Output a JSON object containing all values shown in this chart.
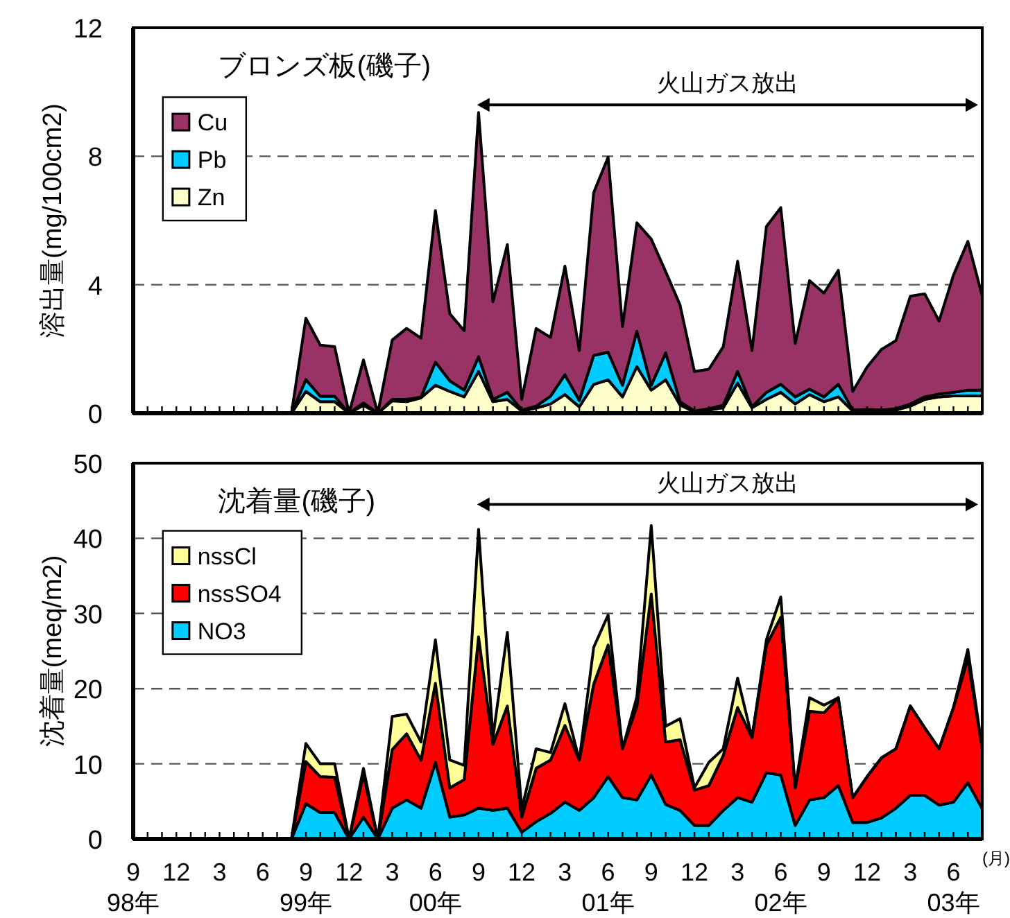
{
  "chart_data": [
    {
      "type": "area",
      "stacked": true,
      "title": "ブロンズ板(磯子)",
      "ylabel": "溶出量(mg/100cm2)",
      "legend": "top left",
      "grid": "y",
      "tick_labels": "y",
      "x": [
        "1999-08",
        "1999-09",
        "1999-10",
        "1999-11",
        "1999-12",
        "2000-01",
        "2000-02",
        "2000-03",
        "2000-04",
        "2000-05",
        "2000-06",
        "2000-07",
        "2000-08",
        "2000-09",
        "2000-10",
        "2000-11",
        "2000-12",
        "2001-01",
        "2001-02",
        "2001-03",
        "2001-04",
        "2001-05",
        "2001-06",
        "2001-07",
        "2001-08",
        "2001-09",
        "2001-10",
        "2001-11",
        "2001-12",
        "2002-01",
        "2002-02",
        "2002-03",
        "2002-04",
        "2002-05",
        "2002-06",
        "2002-07",
        "2002-08",
        "2002-09",
        "2002-10",
        "2002-11",
        "2002-12",
        "2003-01",
        "2003-02",
        "2003-03",
        "2003-04",
        "2003-05",
        "2003-06",
        "2003-07",
        "2003-08"
      ],
      "xlim": [
        "1998-09",
        "2003-08"
      ],
      "ylim": [
        0,
        12
      ],
      "yticks": [
        0,
        4,
        8,
        12
      ],
      "xticks": [
        {
          "value": "1998-09",
          "label": null
        },
        {
          "value": "1998-10",
          "label": null
        },
        {
          "value": "1998-11",
          "label": null
        },
        {
          "value": "1998-12",
          "label": null
        },
        {
          "value": "1999-01",
          "label": null
        },
        {
          "value": "1999-02",
          "label": null
        },
        {
          "value": "1999-03",
          "label": null
        },
        {
          "value": "1999-04",
          "label": null
        },
        {
          "value": "1999-05",
          "label": null
        },
        {
          "value": "1999-06",
          "label": null
        },
        {
          "value": "1999-07",
          "label": null
        },
        {
          "value": "1999-08",
          "label": null
        },
        {
          "value": "1999-09",
          "label": null
        },
        {
          "value": "1999-10",
          "label": null
        },
        {
          "value": "1999-11",
          "label": null
        },
        {
          "value": "1999-12",
          "label": null
        },
        {
          "value": "2000-01",
          "label": null
        },
        {
          "value": "2000-02",
          "label": null
        },
        {
          "value": "2000-03",
          "label": null
        },
        {
          "value": "2000-04",
          "label": null
        },
        {
          "value": "2000-05",
          "label": null
        },
        {
          "value": "2000-06",
          "label": null
        },
        {
          "value": "2000-07",
          "label": null
        },
        {
          "value": "2000-08",
          "label": null
        },
        {
          "value": "2000-09",
          "label": null
        },
        {
          "value": "2000-10",
          "label": null
        },
        {
          "value": "2000-11",
          "label": null
        },
        {
          "value": "2000-12",
          "label": null
        },
        {
          "value": "2001-01",
          "label": null
        },
        {
          "value": "2001-02",
          "label": null
        },
        {
          "value": "2001-03",
          "label": null
        },
        {
          "value": "2001-04",
          "label": null
        },
        {
          "value": "2001-05",
          "label": null
        },
        {
          "value": "2001-06",
          "label": null
        },
        {
          "value": "2001-07",
          "label": null
        },
        {
          "value": "2001-08",
          "label": null
        },
        {
          "value": "2001-09",
          "label": null
        },
        {
          "value": "2001-10",
          "label": null
        },
        {
          "value": "2001-11",
          "label": null
        },
        {
          "value": "2001-12",
          "label": null
        },
        {
          "value": "2002-01",
          "label": null
        },
        {
          "value": "2002-02",
          "label": null
        },
        {
          "value": "2002-03",
          "label": null
        },
        {
          "value": "2002-04",
          "label": null
        },
        {
          "value": "2002-05",
          "label": null
        },
        {
          "value": "2002-06",
          "label": null
        },
        {
          "value": "2002-07",
          "label": null
        },
        {
          "value": "2002-08",
          "label": null
        },
        {
          "value": "2002-09",
          "label": null
        },
        {
          "value": "2002-10",
          "label": null
        },
        {
          "value": "2002-11",
          "label": null
        },
        {
          "value": "2002-12",
          "label": null
        },
        {
          "value": "2003-01",
          "label": null
        },
        {
          "value": "2003-02",
          "label": null
        },
        {
          "value": "2003-03",
          "label": null
        },
        {
          "value": "2003-04",
          "label": null
        },
        {
          "value": "2003-05",
          "label": null
        },
        {
          "value": "2003-06",
          "label": null
        },
        {
          "value": "2003-07",
          "label": null
        },
        {
          "value": "2003-08",
          "label": null
        }
      ],
      "annotations": [
        "火山ガス放出"
      ],
      "series": [
        {
          "name": "Zn",
          "color": "#ffffcc",
          "values": [
            0,
            0.68,
            0.36,
            0.36,
            0,
            0.25,
            0,
            0.39,
            0.36,
            0.48,
            0.87,
            0.68,
            0.51,
            1.3,
            0.36,
            0.43,
            0.07,
            0.16,
            0.29,
            0.58,
            0.2,
            0.9,
            1.04,
            0.51,
            1.45,
            0.72,
            1.04,
            0.26,
            0.04,
            0.1,
            0.17,
            0.94,
            0.17,
            0.43,
            0.65,
            0.29,
            0.58,
            0.36,
            0.51,
            0.07,
            0.07,
            0.07,
            0.1,
            0.22,
            0.43,
            0.51,
            0.54,
            0.54,
            0.54
          ]
        },
        {
          "name": "Pb",
          "color": "#00ccff",
          "values": [
            0,
            0.37,
            0.17,
            0.17,
            0,
            0.07,
            0,
            0.04,
            0.07,
            0.02,
            0.72,
            0.33,
            0.21,
            0.46,
            0.07,
            0.22,
            0.03,
            0.06,
            0.24,
            0.62,
            0.2,
            0.9,
            0.86,
            0.36,
            1.1,
            0.15,
            0.84,
            0.1,
            0.03,
            0.04,
            0.08,
            0.36,
            0.03,
            0.22,
            0.25,
            0.22,
            0.17,
            0.15,
            0.39,
            0.03,
            0.05,
            0.03,
            0.04,
            0.07,
            0.08,
            0.09,
            0.11,
            0.18,
            0.18
          ]
        },
        {
          "name": "Cu",
          "color": "#993366",
          "values": [
            0,
            1.91,
            1.59,
            1.54,
            0,
            1.34,
            0,
            1.85,
            2.21,
            1.84,
            4.72,
            2.09,
            1.85,
            7.6,
            3.04,
            4.6,
            0.33,
            2.42,
            1.83,
            3.38,
            1.55,
            5.07,
            6.07,
            1.83,
            3.38,
            4.55,
            2.53,
            3.01,
            1.23,
            1.23,
            1.82,
            3.43,
            1.75,
            5.16,
            5.5,
            1.66,
            3.38,
            3.23,
            3.55,
            0.58,
            1.32,
            1.89,
            2.12,
            3.35,
            3.21,
            2.27,
            3.65,
            4.63,
            2.92
          ]
        }
      ]
    },
    {
      "type": "area",
      "stacked": true,
      "title": "沈着量(磯子)",
      "ylabel": "沈着量(meq/m2)",
      "xlabel": "(月)",
      "legend": "top left",
      "grid": "y",
      "x": [
        "1999-08",
        "1999-09",
        "1999-10",
        "1999-11",
        "1999-12",
        "2000-01",
        "2000-02",
        "2000-03",
        "2000-04",
        "2000-05",
        "2000-06",
        "2000-07",
        "2000-08",
        "2000-09",
        "2000-10",
        "2000-11",
        "2000-12",
        "2001-01",
        "2001-02",
        "2001-03",
        "2001-04",
        "2001-05",
        "2001-06",
        "2001-07",
        "2001-08",
        "2001-09",
        "2001-10",
        "2001-11",
        "2001-12",
        "2002-01",
        "2002-02",
        "2002-03",
        "2002-04",
        "2002-05",
        "2002-06",
        "2002-07",
        "2002-08",
        "2002-09",
        "2002-10",
        "2002-11",
        "2002-12",
        "2003-01",
        "2003-02",
        "2003-03",
        "2003-04",
        "2003-05",
        "2003-06",
        "2003-07",
        "2003-08"
      ],
      "xlim": [
        "1998-09",
        "2003-08"
      ],
      "ylim": [
        0,
        50
      ],
      "yticks": [
        0,
        10,
        20,
        30,
        40,
        50
      ],
      "xticks": [
        {
          "value": "1998-09",
          "label": "9\n98年"
        },
        {
          "value": "1998-10",
          "label": null
        },
        {
          "value": "1998-11",
          "label": null
        },
        {
          "value": "1998-12",
          "label": "12"
        },
        {
          "value": "1999-01",
          "label": null
        },
        {
          "value": "1999-02",
          "label": null
        },
        {
          "value": "1999-03",
          "label": "3"
        },
        {
          "value": "1999-04",
          "label": null
        },
        {
          "value": "1999-05",
          "label": null
        },
        {
          "value": "1999-06",
          "label": "6"
        },
        {
          "value": "1999-07",
          "label": null
        },
        {
          "value": "1999-08",
          "label": null
        },
        {
          "value": "1999-09",
          "label": "9\n99年"
        },
        {
          "value": "1999-10",
          "label": null
        },
        {
          "value": "1999-11",
          "label": null
        },
        {
          "value": "1999-12",
          "label": "12"
        },
        {
          "value": "2000-01",
          "label": null
        },
        {
          "value": "2000-02",
          "label": null
        },
        {
          "value": "2000-03",
          "label": "3"
        },
        {
          "value": "2000-04",
          "label": null
        },
        {
          "value": "2000-05",
          "label": null
        },
        {
          "value": "2000-06",
          "label": "6\n00年"
        },
        {
          "value": "2000-07",
          "label": null
        },
        {
          "value": "2000-08",
          "label": null
        },
        {
          "value": "2000-09",
          "label": "9"
        },
        {
          "value": "2000-10",
          "label": null
        },
        {
          "value": "2000-11",
          "label": null
        },
        {
          "value": "2000-12",
          "label": "12"
        },
        {
          "value": "2001-01",
          "label": null
        },
        {
          "value": "2001-02",
          "label": null
        },
        {
          "value": "2001-03",
          "label": "3"
        },
        {
          "value": "2001-04",
          "label": null
        },
        {
          "value": "2001-05",
          "label": null
        },
        {
          "value": "2001-06",
          "label": "6\n01年"
        },
        {
          "value": "2001-07",
          "label": null
        },
        {
          "value": "2001-08",
          "label": null
        },
        {
          "value": "2001-09",
          "label": "9"
        },
        {
          "value": "2001-10",
          "label": null
        },
        {
          "value": "2001-11",
          "label": null
        },
        {
          "value": "2001-12",
          "label": "12"
        },
        {
          "value": "2002-01",
          "label": null
        },
        {
          "value": "2002-02",
          "label": null
        },
        {
          "value": "2002-03",
          "label": "3"
        },
        {
          "value": "2002-04",
          "label": null
        },
        {
          "value": "2002-05",
          "label": null
        },
        {
          "value": "2002-06",
          "label": "6\n02年"
        },
        {
          "value": "2002-07",
          "label": null
        },
        {
          "value": "2002-08",
          "label": null
        },
        {
          "value": "2002-09",
          "label": "9"
        },
        {
          "value": "2002-10",
          "label": null
        },
        {
          "value": "2002-11",
          "label": null
        },
        {
          "value": "2002-12",
          "label": "12"
        },
        {
          "value": "2003-01",
          "label": null
        },
        {
          "value": "2003-02",
          "label": null
        },
        {
          "value": "2003-03",
          "label": "3"
        },
        {
          "value": "2003-04",
          "label": null
        },
        {
          "value": "2003-05",
          "label": null
        },
        {
          "value": "2003-06",
          "label": "6\n03年"
        },
        {
          "value": "2003-07",
          "label": null
        },
        {
          "value": "2003-08",
          "label": null
        }
      ],
      "annotations": [
        "火山ガス放出"
      ],
      "series": [
        {
          "name": "NO3",
          "color": "#00ccff",
          "values": [
            0,
            4.7,
            3.5,
            3.5,
            0,
            2.9,
            0,
            4.1,
            5.2,
            4.1,
            10.2,
            2.9,
            3.2,
            4.1,
            3.8,
            4.1,
            0.9,
            2.3,
            3.4,
            4.9,
            3.8,
            5.5,
            8.3,
            5.5,
            5.2,
            8.5,
            4.6,
            3.8,
            1.8,
            1.8,
            3.8,
            5.5,
            4.9,
            8.8,
            8.5,
            1.8,
            5.2,
            5.5,
            7.1,
            2.2,
            2.2,
            2.8,
            4.1,
            5.8,
            5.8,
            4.5,
            4.9,
            7.5,
            4.0
          ]
        },
        {
          "name": "nssSO4",
          "color": "#ff0000",
          "values": [
            0,
            5.6,
            4.8,
            4.7,
            0,
            5.7,
            0,
            7.8,
            8.8,
            6.4,
            10.5,
            3.9,
            4.7,
            22.8,
            8.8,
            13.6,
            2.0,
            7.1,
            7.1,
            10.2,
            6.7,
            15.1,
            17.5,
            6.5,
            12.5,
            24.1,
            8.3,
            9.4,
            4.7,
            5.3,
            7.3,
            12.0,
            8.6,
            17.0,
            21.0,
            5.0,
            11.8,
            11.3,
            11.7,
            3.3,
            6.1,
            8.0,
            7.9,
            11.9,
            9.0,
            7.5,
            12.6,
            16.5,
            8.0
          ]
        },
        {
          "name": "nssCl",
          "color": "#ffff99",
          "values": [
            0,
            2.4,
            1.7,
            1.8,
            0,
            0.8,
            0,
            4.4,
            2.6,
            2.4,
            5.8,
            3.7,
            1.9,
            14.3,
            0.9,
            9.8,
            1.1,
            2.6,
            1.0,
            2.9,
            0,
            4.9,
            4.0,
            0,
            1.2,
            9.1,
            2.1,
            2.8,
            0.3,
            3.1,
            0.9,
            3.9,
            0,
            0.7,
            2.7,
            0,
            1.8,
            1.0,
            0,
            0,
            0,
            0,
            0,
            0,
            0,
            0,
            0,
            1.2,
            0
          ]
        }
      ]
    }
  ]
}
